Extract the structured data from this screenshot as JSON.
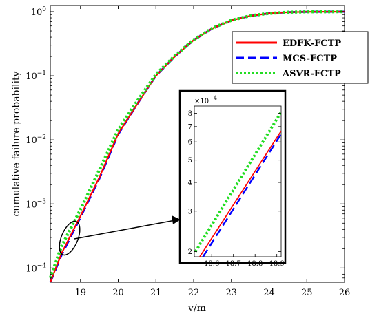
{
  "chart_data": {
    "type": "line",
    "title": "",
    "xlabel": "v/m",
    "ylabel": "cumulative failure probability",
    "xlim": [
      18.2,
      26
    ],
    "yscale": "log",
    "ylim": [
      6e-05,
      1.25
    ],
    "x_ticks": [
      19,
      20,
      21,
      22,
      23,
      24,
      25,
      26
    ],
    "y_ticks": [
      {
        "value": 0.0001,
        "base": "10",
        "exp": "−4"
      },
      {
        "value": 0.001,
        "base": "10",
        "exp": "−3"
      },
      {
        "value": 0.01,
        "base": "10",
        "exp": "−2"
      },
      {
        "value": 0.1,
        "base": "10",
        "exp": "−1"
      },
      {
        "value": 1,
        "base": "10",
        "exp": "0"
      }
    ],
    "grid": false,
    "legend_position": "top-right",
    "series": [
      {
        "name": "EDFK-FCTP",
        "color": "#ff0000",
        "style": "solid",
        "x": [
          18.2,
          18.5,
          19,
          19.5,
          20,
          20.5,
          21,
          21.5,
          22,
          22.5,
          23,
          23.5,
          24,
          24.5,
          25,
          26
        ],
        "y": [
          6e-05,
          0.00017,
          0.00065,
          0.0026,
          0.0125,
          0.036,
          0.1,
          0.2,
          0.36,
          0.55,
          0.73,
          0.86,
          0.94,
          0.98,
          0.995,
          1.0
        ]
      },
      {
        "name": "MCS-FCTP",
        "color": "#0000ff",
        "style": "dashed",
        "x": [
          18.2,
          18.5,
          19,
          19.5,
          20,
          20.5,
          21,
          21.5,
          22,
          22.5,
          23,
          23.5,
          24,
          24.5,
          25,
          26
        ],
        "y": [
          6e-05,
          0.00016,
          0.00062,
          0.0025,
          0.0122,
          0.036,
          0.1,
          0.2,
          0.36,
          0.55,
          0.73,
          0.86,
          0.94,
          0.98,
          0.995,
          1.0
        ]
      },
      {
        "name": "ASVR-FCTP",
        "color": "#22dd22",
        "style": "dotted",
        "x": [
          18.2,
          18.5,
          19,
          19.5,
          20,
          20.5,
          21,
          21.5,
          22,
          22.5,
          23,
          23.5,
          24,
          24.5,
          25,
          26
        ],
        "y": [
          7e-05,
          0.00022,
          0.00082,
          0.0034,
          0.0145,
          0.04,
          0.105,
          0.205,
          0.365,
          0.555,
          0.735,
          0.865,
          0.94,
          0.98,
          0.995,
          1.0
        ]
      }
    ],
    "inset": {
      "xlim": [
        18.52,
        18.92
      ],
      "ylim": [
        0.00019,
        0.00086
      ],
      "x_ticks": [
        18.6,
        18.7,
        18.8,
        18.9
      ],
      "y_ticks": [
        2,
        3,
        4,
        5,
        6,
        7,
        8
      ],
      "multiplier": {
        "base": "×10",
        "exp": "−4"
      },
      "series": [
        {
          "name": "EDFK-FCTP",
          "x": [
            18.545,
            18.92
          ],
          "y": [
            0.00019,
            0.00067
          ]
        },
        {
          "name": "MCS-FCTP",
          "x": [
            18.56,
            18.92
          ],
          "y": [
            0.00019,
            0.00065
          ]
        },
        {
          "name": "ASVR-FCTP",
          "x": [
            18.525,
            18.92
          ],
          "y": [
            0.0002,
            0.00081
          ]
        }
      ]
    }
  }
}
